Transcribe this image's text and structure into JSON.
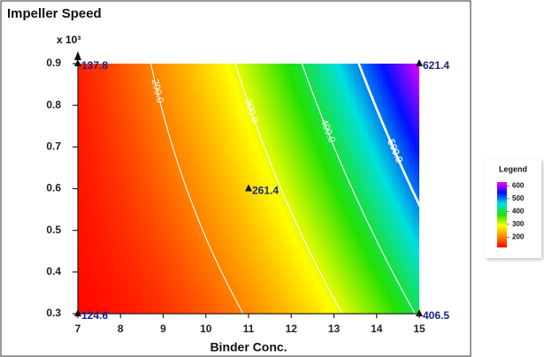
{
  "chart_data": {
    "type": "contour",
    "title": "Impeller Speed",
    "x_label": "Binder Conc.",
    "y_multiplier": "x 10³",
    "xlim": [
      7,
      15
    ],
    "xticks": [
      7,
      8,
      9,
      10,
      11,
      12,
      13,
      14,
      15
    ],
    "ylim": [
      0.3,
      0.9
    ],
    "yticks": [
      0.3,
      0.4,
      0.5,
      0.6,
      0.7,
      0.8,
      0.9
    ],
    "points": {
      "x": [
        7,
        15,
        11,
        7,
        15
      ],
      "y": [
        0.9,
        0.9,
        0.6,
        0.3,
        0.3
      ],
      "values": [
        137.8,
        621.4,
        261.4,
        124.6,
        406.5
      ]
    },
    "contours": [
      {
        "value": 200,
        "label": "200.0"
      },
      {
        "value": 300,
        "label": "300.0"
      },
      {
        "value": 400,
        "label": "400.0"
      },
      {
        "value": 500,
        "label": "500.0"
      }
    ],
    "colormap": [
      "#ff0000",
      "#ff8a00",
      "#ffff00",
      "#22e000",
      "#00e0e0",
      "#0010ff",
      "#ff00ff"
    ],
    "clim": [
      120,
      630
    ],
    "legend": {
      "title": "Legend",
      "ticks": [
        200,
        300,
        400,
        500,
        600
      ]
    }
  }
}
